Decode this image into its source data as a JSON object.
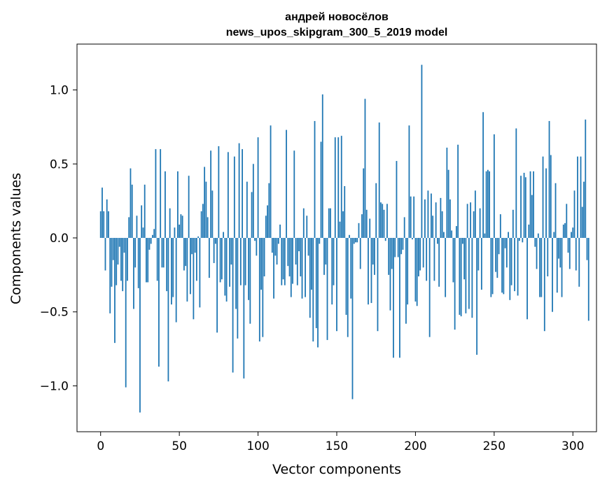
{
  "chart_data": {
    "type": "bar",
    "title": "андрей новосёлов",
    "subtitle": "news_upos_skipgram_300_5_2019 model",
    "xlabel": "Vector components",
    "ylabel": "Components values",
    "xlim": [
      -15,
      315
    ],
    "ylim": [
      -1.31,
      1.31
    ],
    "xticks": [
      0,
      50,
      100,
      150,
      200,
      250,
      300
    ],
    "xtick_labels": [
      "0",
      "50",
      "100",
      "150",
      "200",
      "250",
      "300"
    ],
    "yticks": [
      -1.0,
      -0.5,
      0.0,
      0.5,
      1.0
    ],
    "ytick_labels": [
      "−1.0",
      "−0.5",
      "0.0",
      "0.5",
      "1.0"
    ],
    "bar_color": "#1f77b4",
    "grid": false,
    "legend": "none",
    "values": [
      0.18,
      0.34,
      0.18,
      -0.22,
      0.26,
      0.18,
      -0.51,
      -0.33,
      -0.15,
      -0.71,
      -0.32,
      -0.18,
      -0.06,
      -0.29,
      -0.36,
      -0.1,
      -1.01,
      -0.29,
      0.14,
      0.47,
      0.36,
      -0.48,
      -0.2,
      0.15,
      -0.34,
      -1.18,
      0.22,
      0.07,
      0.36,
      -0.3,
      -0.3,
      -0.08,
      -0.04,
      0.02,
      0.06,
      0.6,
      -0.29,
      -0.87,
      0.6,
      -0.2,
      -0.2,
      0.45,
      -0.36,
      -0.97,
      0.2,
      -0.45,
      -0.4,
      0.07,
      -0.57,
      0.45,
      0.09,
      0.16,
      0.15,
      -0.22,
      -0.19,
      -0.43,
      0.42,
      -0.38,
      -0.11,
      -0.55,
      -0.1,
      -0.29,
      0.01,
      -0.47,
      0.18,
      0.23,
      0.48,
      0.38,
      0.14,
      -0.27,
      0.59,
      0.32,
      -0.17,
      -0.04,
      -0.64,
      0.62,
      -0.3,
      -0.28,
      0.04,
      -0.39,
      -0.43,
      0.58,
      -0.33,
      -0.18,
      -0.91,
      0.55,
      -0.48,
      -0.68,
      0.64,
      -0.32,
      0.6,
      -0.95,
      -0.32,
      0.38,
      -0.42,
      -0.58,
      0.31,
      0.5,
      -0.02,
      -0.12,
      0.68,
      -0.7,
      -0.35,
      -0.67,
      -0.26,
      0.15,
      0.22,
      0.37,
      0.76,
      -0.1,
      -0.41,
      -0.12,
      -0.18,
      -0.04,
      0.09,
      -0.32,
      -0.28,
      -0.32,
      0.73,
      -0.19,
      -0.26,
      -0.4,
      -0.31,
      0.59,
      -0.18,
      -0.32,
      -0.09,
      -0.26,
      -0.41,
      0.2,
      -0.4,
      0.15,
      -0.12,
      -0.54,
      -0.35,
      -0.7,
      0.79,
      -0.61,
      -0.74,
      -0.04,
      0.65,
      0.97,
      -0.25,
      -0.18,
      -0.69,
      0.2,
      0.2,
      -0.45,
      -0.32,
      0.68,
      -0.63,
      0.68,
      0.11,
      0.69,
      0.18,
      0.35,
      -0.52,
      -0.67,
      0.02,
      -0.41,
      -1.09,
      -0.04,
      -0.03,
      -0.03,
      0.1,
      -0.21,
      0.16,
      0.47,
      0.94,
      0.19,
      -0.45,
      0.13,
      -0.44,
      -0.18,
      -0.25,
      0.37,
      -0.63,
      0.78,
      0.24,
      0.23,
      0.19,
      -0.02,
      0.23,
      -0.25,
      -0.49,
      -0.21,
      -0.81,
      -0.13,
      0.52,
      -0.13,
      -0.81,
      -0.11,
      -0.08,
      0.14,
      -0.58,
      -0.45,
      0.76,
      0.28,
      -0.01,
      0.28,
      -0.43,
      -0.46,
      -0.26,
      -0.22,
      1.17,
      -0.2,
      0.26,
      -0.29,
      0.32,
      -0.67,
      0.3,
      0.15,
      -0.29,
      0.24,
      -0.04,
      -0.33,
      0.27,
      0.18,
      0.04,
      -0.4,
      0.61,
      0.46,
      0.26,
      0.05,
      -0.3,
      -0.62,
      0.08,
      0.63,
      -0.52,
      -0.53,
      -0.04,
      -0.28,
      -0.51,
      0.23,
      -0.48,
      0.24,
      -0.54,
      0.18,
      0.32,
      -0.79,
      -0.22,
      0.2,
      -0.35,
      0.85,
      0.03,
      0.45,
      0.46,
      0.45,
      -0.4,
      -0.38,
      0.7,
      -0.23,
      -0.27,
      -0.11,
      0.16,
      -0.37,
      -0.38,
      -0.07,
      -0.2,
      0.04,
      -0.42,
      -0.32,
      0.19,
      -0.36,
      0.74,
      -0.39,
      -0.02,
      0.42,
      -0.03,
      0.44,
      0.41,
      -0.55,
      0.09,
      0.45,
      0.29,
      0.45,
      -0.06,
      -0.21,
      0.03,
      -0.4,
      -0.4,
      0.55,
      -0.63,
      0.47,
      -0.26,
      0.79,
      0.56,
      -0.5,
      0.04,
      0.37,
      -0.37,
      -0.14,
      -0.2,
      -0.4,
      0.09,
      0.1,
      0.23,
      -0.1,
      -0.21,
      0.04,
      0.07,
      0.32,
      -0.22,
      0.55,
      -0.33,
      0.55,
      0.21,
      0.38,
      0.8,
      -0.15,
      -0.56
    ]
  }
}
